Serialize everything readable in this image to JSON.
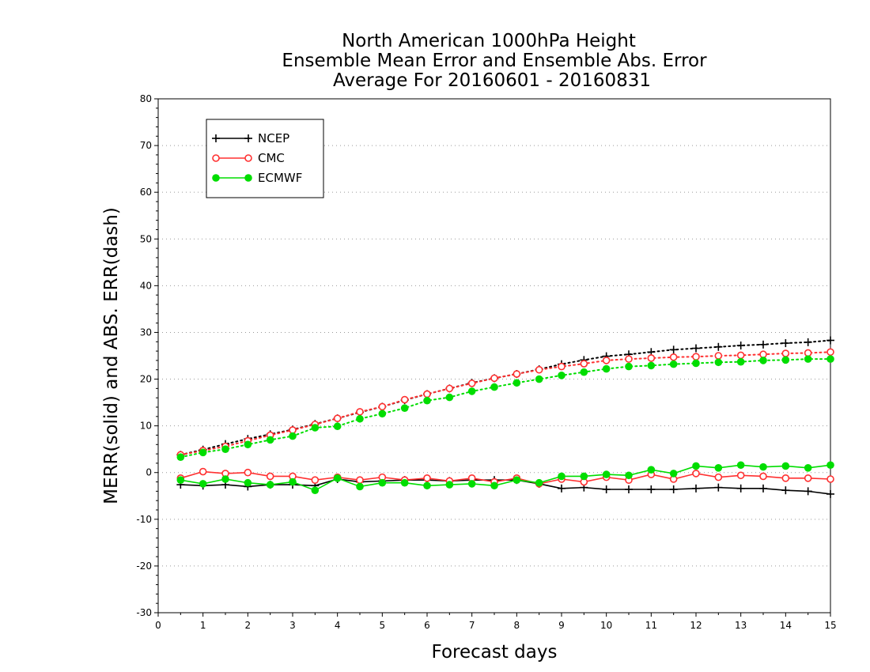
{
  "chart_data": {
    "type": "line",
    "title": [
      "North American 1000hPa Height",
      "Ensemble Mean Error and Ensemble Abs. Error",
      "Average For 20160601 - 20160831"
    ],
    "xlabel": "Forecast days",
    "ylabel": "MERR(solid) and ABS. ERR(dash)",
    "xlim": [
      0,
      15
    ],
    "ylim": [
      -30,
      80
    ],
    "xticks": [
      "0",
      "1",
      "2",
      "3",
      "4",
      "5",
      "6",
      "7",
      "8",
      "9",
      "10",
      "11",
      "12",
      "13",
      "14",
      "15"
    ],
    "yticks": [
      "-30",
      "-20",
      "-10",
      "0",
      "10",
      "20",
      "30",
      "40",
      "50",
      "60",
      "70",
      "80"
    ],
    "grid": "horizontal dotted",
    "legend_position": "top-left",
    "x": [
      0.5,
      1,
      1.5,
      2,
      2.5,
      3,
      3.5,
      4,
      4.5,
      5,
      5.5,
      6,
      6.5,
      7,
      7.5,
      8,
      8.5,
      9,
      9.5,
      10,
      10.5,
      11,
      11.5,
      12,
      12.5,
      13,
      13.5,
      14,
      14.5,
      15
    ],
    "series": [
      {
        "name": "NCEP",
        "color": "#000000",
        "marker": "plus",
        "merr": [
          -2.6,
          -2.8,
          -2.6,
          -3.0,
          -2.6,
          -2.6,
          -2.8,
          -1.4,
          -2.0,
          -1.8,
          -1.6,
          -1.6,
          -1.8,
          -1.6,
          -1.6,
          -1.6,
          -2.4,
          -3.4,
          -3.2,
          -3.6,
          -3.6,
          -3.6,
          -3.6,
          -3.4,
          -3.2,
          -3.4,
          -3.4,
          -3.8,
          -4.0,
          -4.6
        ],
        "abs_err": [
          3.8,
          4.9,
          6.1,
          7.2,
          8.2,
          9.2,
          10.4,
          11.6,
          12.9,
          14.1,
          15.5,
          16.8,
          18.0,
          19.2,
          20.2,
          21.1,
          22.1,
          23.2,
          24.1,
          24.9,
          25.3,
          25.8,
          26.3,
          26.6,
          26.9,
          27.2,
          27.4,
          27.7,
          27.9,
          28.3
        ]
      },
      {
        "name": "CMC",
        "color": "#ff3030",
        "marker": "open-circle",
        "merr": [
          -1.2,
          0.2,
          -0.2,
          0.0,
          -0.8,
          -0.8,
          -1.6,
          -1.0,
          -1.6,
          -1.0,
          -1.6,
          -1.2,
          -1.8,
          -1.2,
          -2.0,
          -1.2,
          -2.4,
          -1.4,
          -2.0,
          -1.0,
          -1.6,
          -0.4,
          -1.4,
          -0.2,
          -1.0,
          -0.6,
          -0.8,
          -1.2,
          -1.2,
          -1.4
        ],
        "abs_err": [
          3.8,
          4.7,
          5.6,
          6.8,
          8.0,
          9.1,
          10.3,
          11.6,
          13.0,
          14.1,
          15.6,
          16.8,
          18.0,
          19.1,
          20.2,
          21.1,
          22.0,
          22.7,
          23.3,
          24.0,
          24.3,
          24.5,
          24.7,
          24.8,
          25.0,
          25.1,
          25.3,
          25.5,
          25.6,
          25.8
        ]
      },
      {
        "name": "ECMWF",
        "color": "#00dd00",
        "marker": "filled-circle",
        "merr": [
          -1.6,
          -2.4,
          -1.4,
          -2.2,
          -2.6,
          -2.0,
          -3.8,
          -1.2,
          -3.0,
          -2.2,
          -2.2,
          -2.8,
          -2.6,
          -2.4,
          -2.8,
          -1.6,
          -2.2,
          -0.8,
          -0.8,
          -0.4,
          -0.6,
          0.6,
          -0.2,
          1.4,
          1.0,
          1.6,
          1.2,
          1.4,
          1.0,
          1.6
        ],
        "abs_err": [
          3.3,
          4.3,
          5.0,
          6.0,
          7.0,
          7.8,
          9.6,
          9.9,
          11.5,
          12.6,
          13.8,
          15.4,
          16.1,
          17.4,
          18.3,
          19.2,
          20.0,
          20.8,
          21.5,
          22.2,
          22.7,
          22.9,
          23.2,
          23.4,
          23.6,
          23.7,
          24.0,
          24.1,
          24.3,
          24.3
        ]
      }
    ]
  }
}
